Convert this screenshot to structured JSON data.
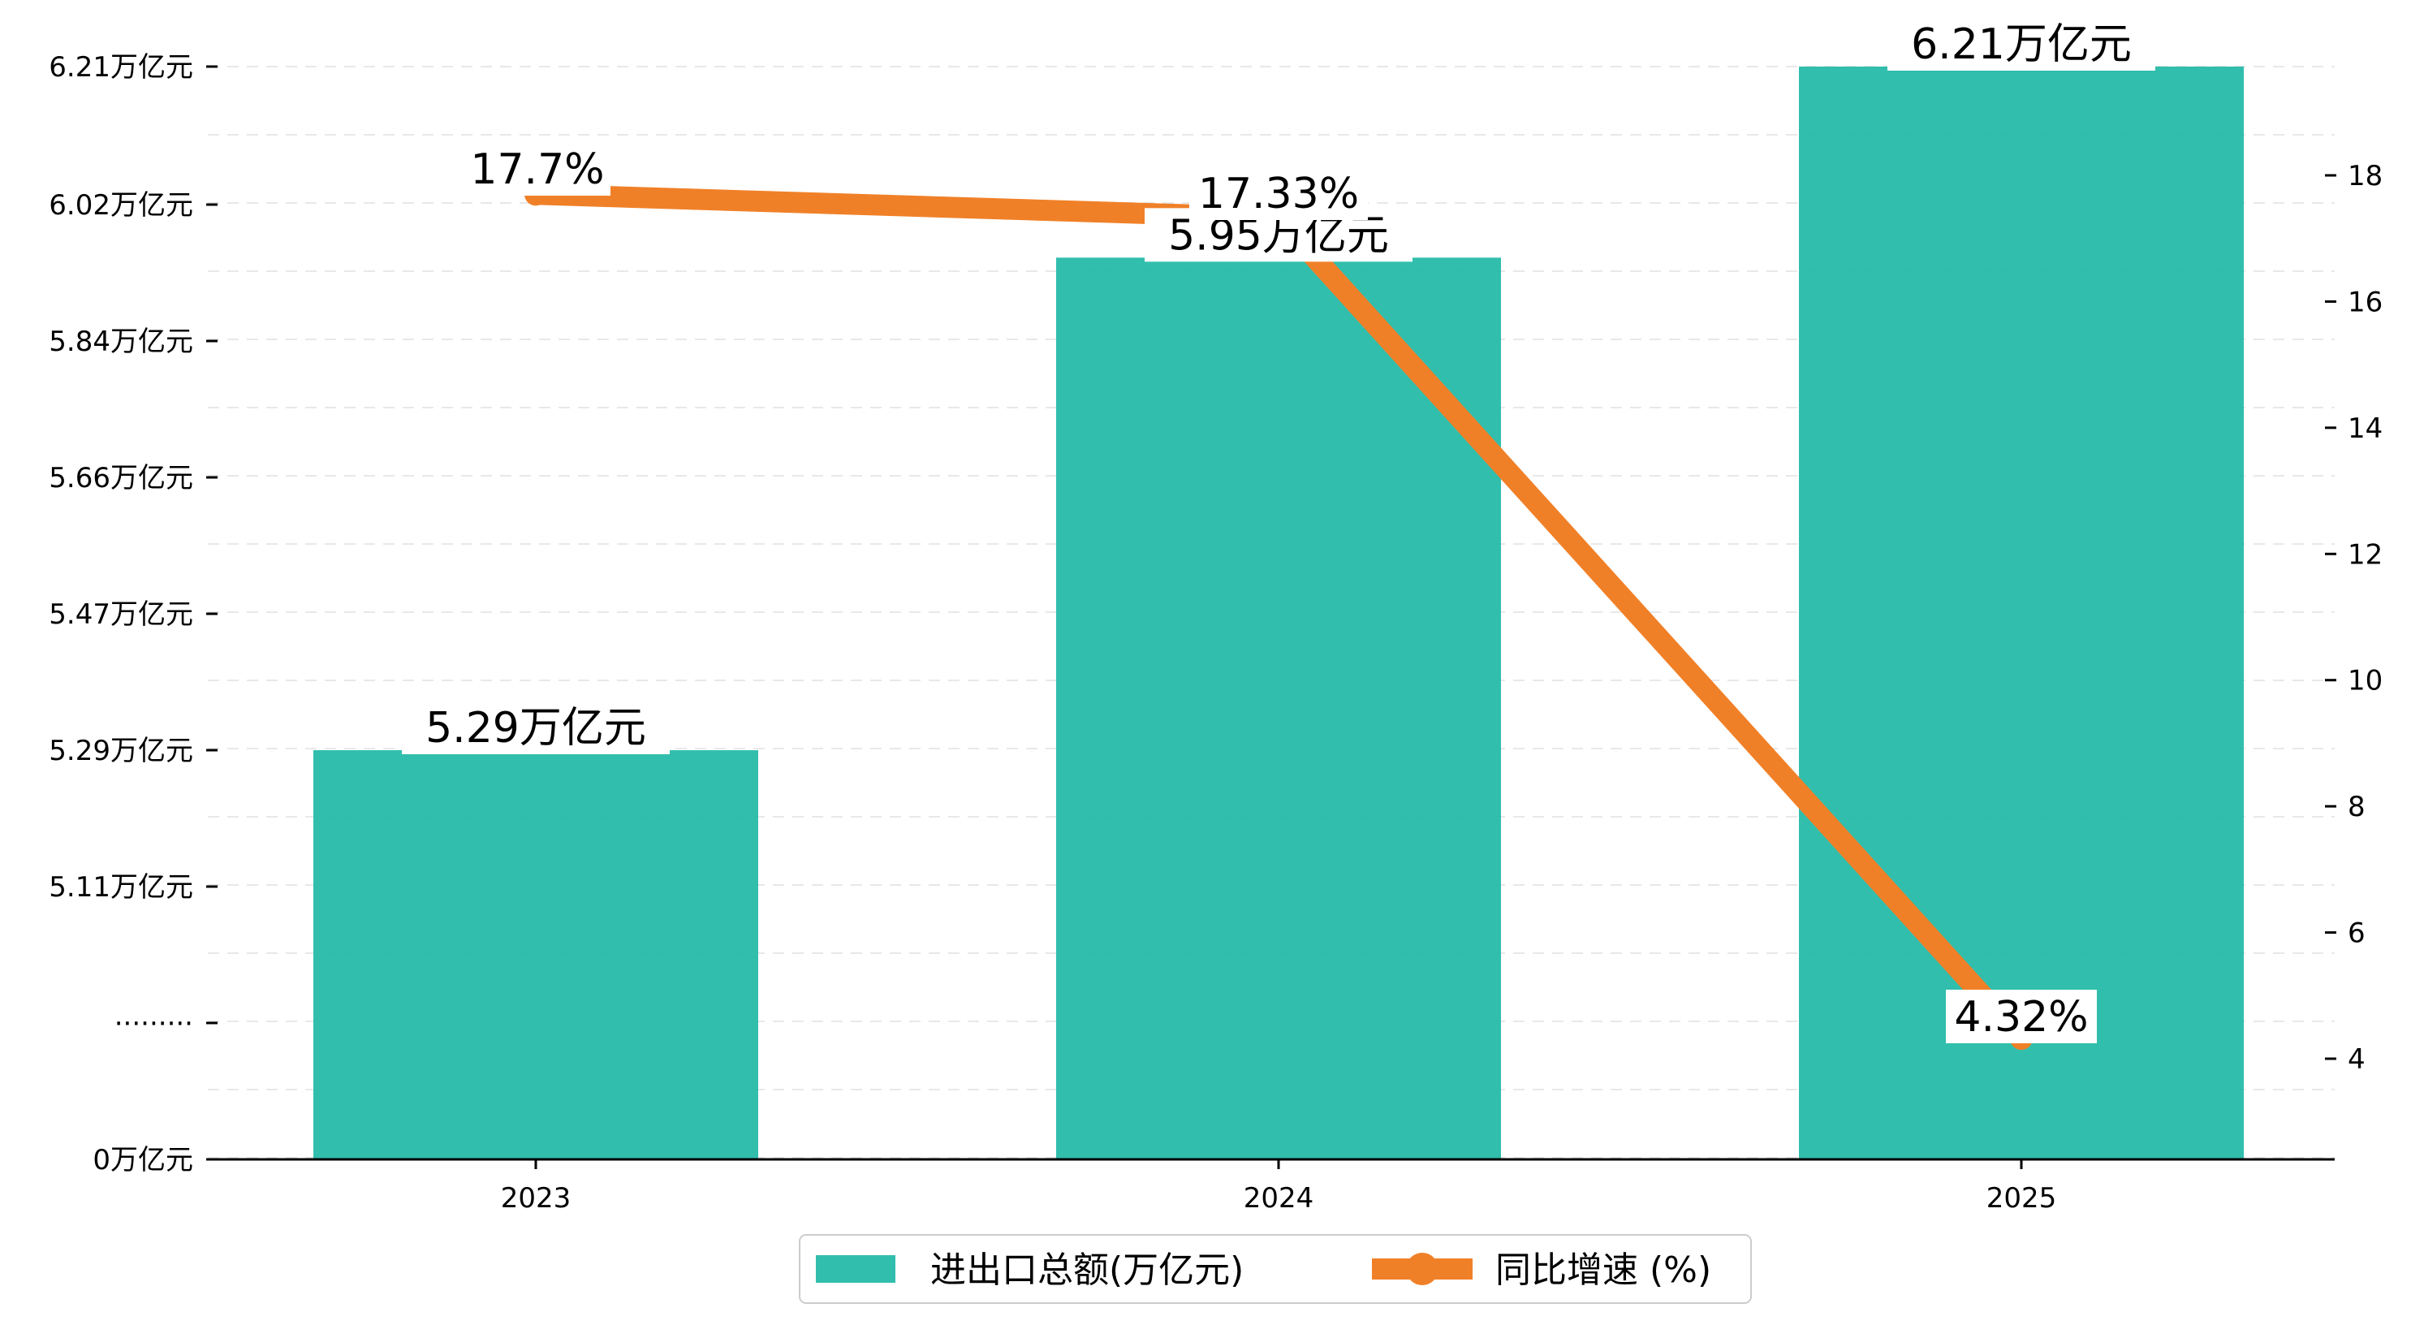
{
  "chart_data": {
    "type": "bar+line",
    "title": "",
    "categories": [
      "2023",
      "2024",
      "2025"
    ],
    "series": [
      {
        "name": "进出口总额(万亿元)",
        "type": "bar",
        "values": [
          5.29,
          5.95,
          6.21
        ],
        "labels": [
          "5.29万亿元",
          "5.95万亿元",
          "6.21万亿元"
        ],
        "color": "#1fb8a6"
      },
      {
        "name": "同比增速 (%)",
        "type": "line",
        "values": [
          17.7,
          17.33,
          4.32
        ],
        "labels": [
          "17.7%",
          "17.33%",
          "4.32%"
        ],
        "color": "#f08028"
      }
    ],
    "left_axis": {
      "tick_values": [
        0,
        4.93,
        5.11,
        5.29,
        5.47,
        5.66,
        5.84,
        6.02,
        6.21
      ],
      "tick_labels": [
        "0万亿元",
        "·········",
        "5.11万亿元",
        "5.29万亿元",
        "5.47万亿元",
        "5.66万亿元",
        "5.84万亿元",
        "6.02万亿元",
        "6.21万亿元"
      ],
      "broken": true
    },
    "right_axis": {
      "ylim": [
        2.4,
        19.8
      ],
      "ticks": [
        4,
        6,
        8,
        10,
        12,
        14,
        16,
        18
      ]
    },
    "grid": "horizontal dashed",
    "legend_position": "bottom-center"
  }
}
